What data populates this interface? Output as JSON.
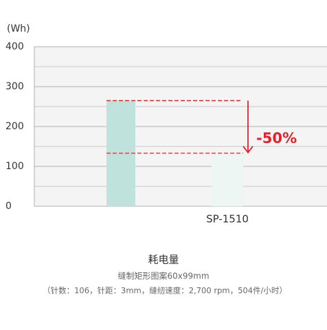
{
  "chart_data": {
    "type": "bar",
    "y_label": "(Wh)",
    "categories": [
      null,
      "SP-1510"
    ],
    "values": [
      265,
      133
    ],
    "colors": [
      "#bfe3dc",
      "#edf6f3"
    ],
    "ylim": [
      0,
      400
    ],
    "yticks": [
      0,
      100,
      200,
      300,
      400
    ],
    "minor_yticks": [
      50,
      150,
      250,
      350
    ],
    "grid": true,
    "annotation": "-50%",
    "annotation_color": "#e8202a",
    "caption_title": "耗电量",
    "caption_line1": "缝制矩形图案60x99mm",
    "caption_line2": "（针数：106，针距：3mm，缝纫速度：2,700 rpm，504件/小时）"
  }
}
